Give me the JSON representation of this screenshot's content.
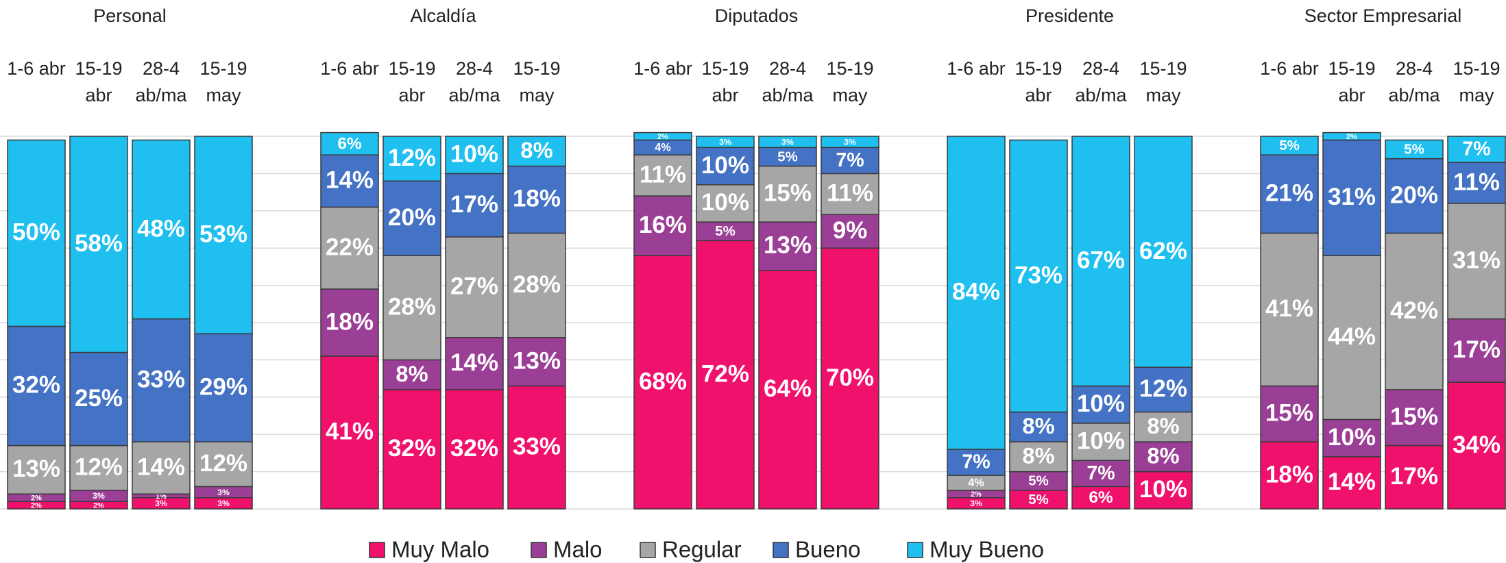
{
  "legend": [
    {
      "name": "Muy Malo",
      "color": "#f0116c"
    },
    {
      "name": "Malo",
      "color": "#9b3f96"
    },
    {
      "name": "Regular",
      "color": "#a6a6a6"
    },
    {
      "name": "Bueno",
      "color": "#4472c4"
    },
    {
      "name": "Muy Bueno",
      "color": "#1fbff0"
    }
  ],
  "chart_data": [
    {
      "type": "bar",
      "stacked": true,
      "title": "Personal",
      "categories": [
        "1-6 abr",
        "15-19 abr",
        "28-4 ab/ma",
        "15-19 may"
      ],
      "ylim": [
        0,
        100
      ],
      "yticks": [
        0,
        10,
        20,
        30,
        40,
        50,
        60,
        70,
        80,
        90,
        100
      ],
      "grid": true,
      "series": [
        {
          "values": [
            2,
            2,
            3,
            3
          ],
          "value_labels": [
            "2%",
            "2%",
            "3%",
            "3%"
          ]
        },
        {
          "values": [
            2,
            3,
            1,
            3
          ],
          "value_labels": [
            "2%",
            "3%",
            "1%",
            "3%"
          ]
        },
        {
          "values": [
            13,
            12,
            14,
            12
          ],
          "value_labels": [
            "13%",
            "12%",
            "14%",
            "12%"
          ]
        },
        {
          "values": [
            32,
            25,
            33,
            29
          ],
          "value_labels": [
            "32%",
            "25%",
            "33%",
            "29%"
          ]
        },
        {
          "values": [
            50,
            58,
            48,
            53
          ],
          "value_labels": [
            "50%",
            "58%",
            "48%",
            "53%"
          ]
        }
      ]
    },
    {
      "type": "bar",
      "stacked": true,
      "title": "Alcaldía",
      "categories": [
        "1-6 abr",
        "15-19 abr",
        "28-4 ab/ma",
        "15-19 may"
      ],
      "ylim": [
        0,
        100
      ],
      "yticks": [
        0,
        10,
        20,
        30,
        40,
        50,
        60,
        70,
        80,
        90,
        100
      ],
      "grid": true,
      "series": [
        {
          "values": [
            41,
            32,
            32,
            33
          ],
          "value_labels": [
            "41%",
            "32%",
            "32%",
            "33%"
          ]
        },
        {
          "values": [
            18,
            8,
            14,
            13
          ],
          "value_labels": [
            "18%",
            "8%",
            "14%",
            "13%"
          ]
        },
        {
          "values": [
            22,
            28,
            27,
            28
          ],
          "value_labels": [
            "22%",
            "28%",
            "27%",
            "28%"
          ]
        },
        {
          "values": [
            14,
            20,
            17,
            18
          ],
          "value_labels": [
            "14%",
            "20%",
            "17%",
            "18%"
          ]
        },
        {
          "values": [
            6,
            12,
            10,
            8
          ],
          "value_labels": [
            "6%",
            "12%",
            "10%",
            "8%"
          ]
        }
      ]
    },
    {
      "type": "bar",
      "stacked": true,
      "title": "Diputados",
      "categories": [
        "1-6 abr",
        "15-19 abr",
        "28-4 ab/ma",
        "15-19 may"
      ],
      "ylim": [
        0,
        100
      ],
      "yticks": [
        0,
        10,
        20,
        30,
        40,
        50,
        60,
        70,
        80,
        90,
        100
      ],
      "grid": true,
      "series": [
        {
          "values": [
            68,
            72,
            64,
            70
          ],
          "value_labels": [
            "68%",
            "72%",
            "64%",
            "70%"
          ]
        },
        {
          "values": [
            16,
            5,
            13,
            9
          ],
          "value_labels": [
            "16%",
            "5%",
            "13%",
            "9%"
          ]
        },
        {
          "values": [
            11,
            10,
            15,
            11
          ],
          "value_labels": [
            "11%",
            "10%",
            "15%",
            "11%"
          ]
        },
        {
          "values": [
            4,
            10,
            5,
            7
          ],
          "value_labels": [
            "4%",
            "10%",
            "5%",
            "7%"
          ]
        },
        {
          "values": [
            2,
            3,
            3,
            3
          ],
          "value_labels": [
            "2%",
            "3%",
            "3%",
            "3%"
          ]
        }
      ]
    },
    {
      "type": "bar",
      "stacked": true,
      "title": "Presidente",
      "categories": [
        "1-6 abr",
        "15-19 abr",
        "28-4 ab/ma",
        "15-19 may"
      ],
      "ylim": [
        0,
        100
      ],
      "yticks": [
        0,
        10,
        20,
        30,
        40,
        50,
        60,
        70,
        80,
        90,
        100
      ],
      "grid": true,
      "series": [
        {
          "values": [
            3,
            5,
            6,
            10
          ],
          "value_labels": [
            "3%",
            "5%",
            "6%",
            "10%"
          ]
        },
        {
          "values": [
            2,
            5,
            7,
            8
          ],
          "value_labels": [
            "2%",
            "5%",
            "7%",
            "8%"
          ]
        },
        {
          "values": [
            4,
            8,
            10,
            8
          ],
          "value_labels": [
            "4%",
            "8%",
            "10%",
            "8%"
          ]
        },
        {
          "values": [
            7,
            8,
            10,
            12
          ],
          "value_labels": [
            "7%",
            "8%",
            "10%",
            "12%"
          ]
        },
        {
          "values": [
            84,
            73,
            67,
            62
          ],
          "value_labels": [
            "84%",
            "73%",
            "67%",
            "62%"
          ]
        }
      ]
    },
    {
      "type": "bar",
      "stacked": true,
      "title": "Sector Empresarial",
      "categories": [
        "1-6 abr",
        "15-19 abr",
        "28-4 ab/ma",
        "15-19 may"
      ],
      "ylim": [
        0,
        100
      ],
      "yticks": [
        0,
        10,
        20,
        30,
        40,
        50,
        60,
        70,
        80,
        90,
        100
      ],
      "grid": true,
      "series": [
        {
          "values": [
            18,
            14,
            17,
            34
          ],
          "value_labels": [
            "18%",
            "14%",
            "17%",
            "34%"
          ]
        },
        {
          "values": [
            15,
            10,
            15,
            17
          ],
          "value_labels": [
            "15%",
            "10%",
            "15%",
            "17%"
          ]
        },
        {
          "values": [
            41,
            44,
            42,
            31
          ],
          "value_labels": [
            "41%",
            "44%",
            "42%",
            "31%"
          ]
        },
        {
          "values": [
            21,
            31,
            20,
            11
          ],
          "value_labels": [
            "21%",
            "31%",
            "20%",
            "11%"
          ]
        },
        {
          "values": [
            5,
            2,
            5,
            7
          ],
          "value_labels": [
            "5%",
            "2%",
            "5%",
            "7%"
          ]
        }
      ]
    }
  ]
}
